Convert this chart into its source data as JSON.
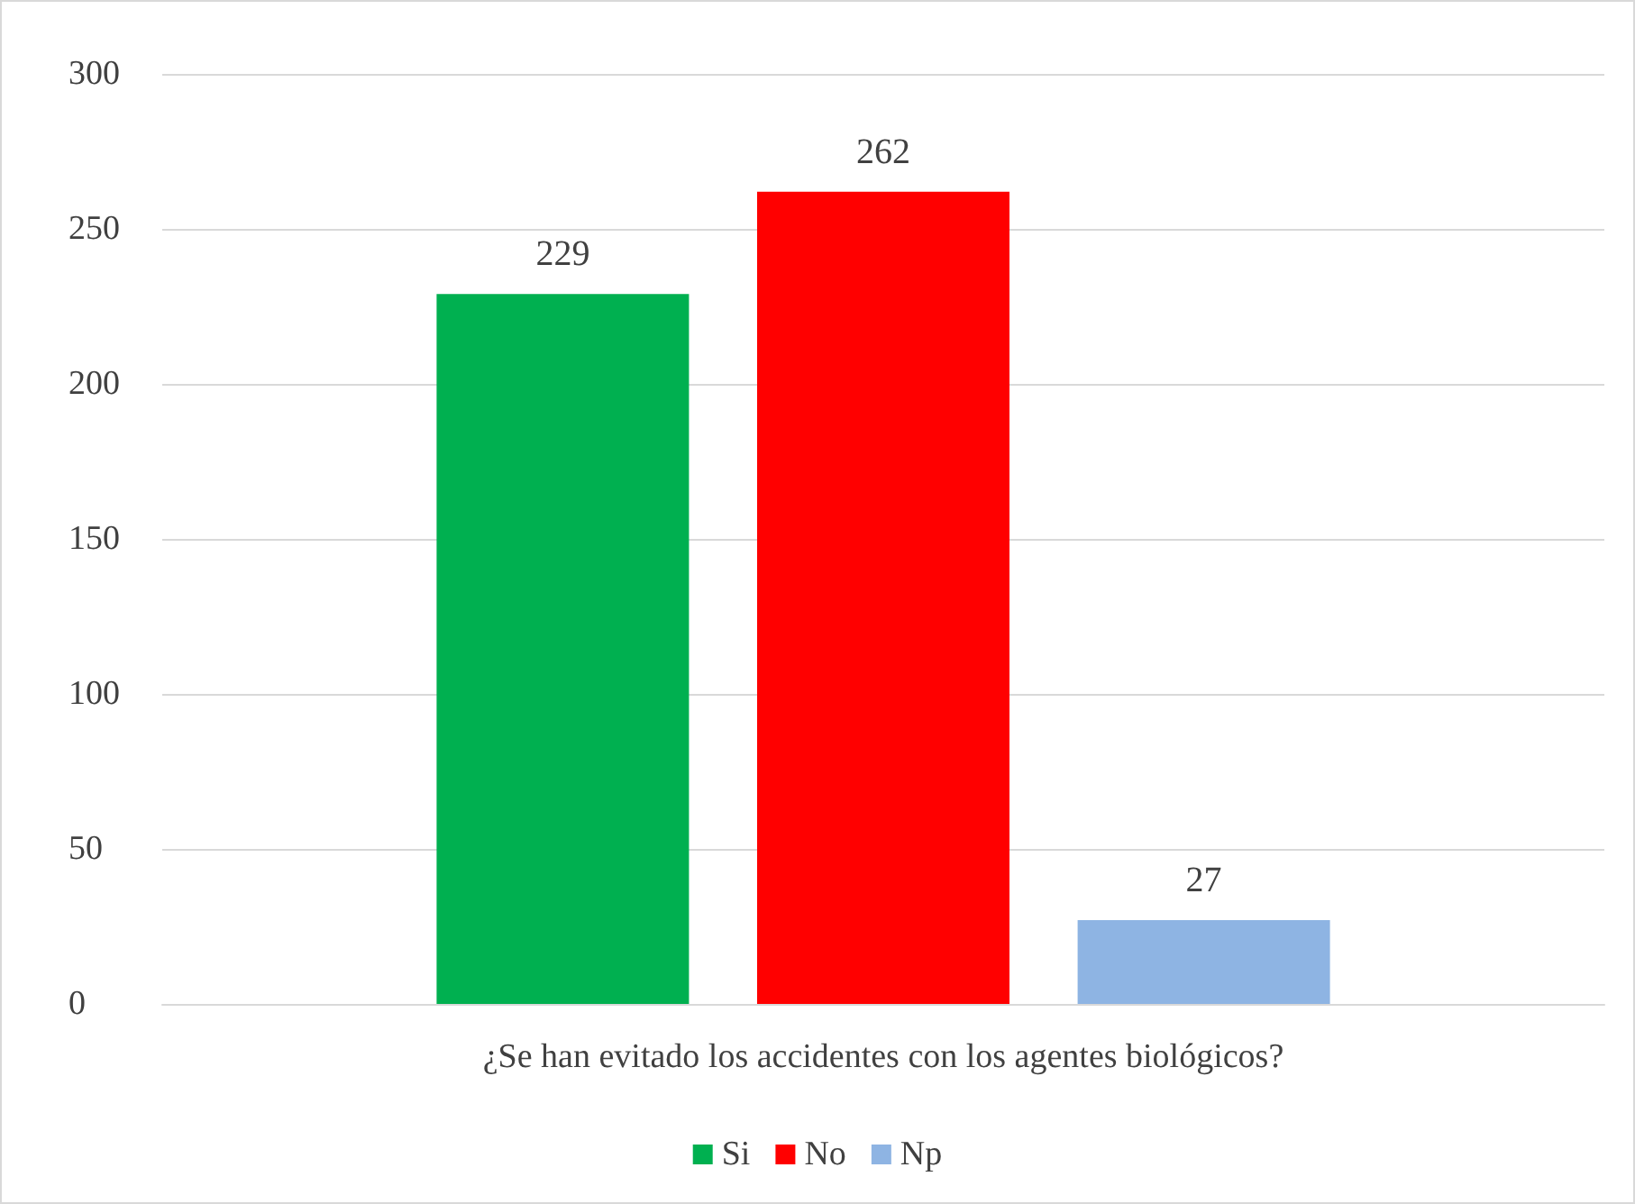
{
  "chart_data": {
    "type": "bar",
    "categories": [
      "¿Se han evitado los accidentes con los agentes biológicos?"
    ],
    "series": [
      {
        "name": "Si",
        "color": "#00b050",
        "values": [
          229
        ]
      },
      {
        "name": "No",
        "color": "#ff0000",
        "values": [
          262
        ]
      },
      {
        "name": "Np",
        "color": "#8eb4e3",
        "values": [
          27
        ]
      }
    ],
    "ylim": [
      0,
      300
    ],
    "yticks": [
      0,
      50,
      100,
      150,
      200,
      250,
      300
    ],
    "grid": "y",
    "legend": "bottom",
    "data_labels": true
  }
}
